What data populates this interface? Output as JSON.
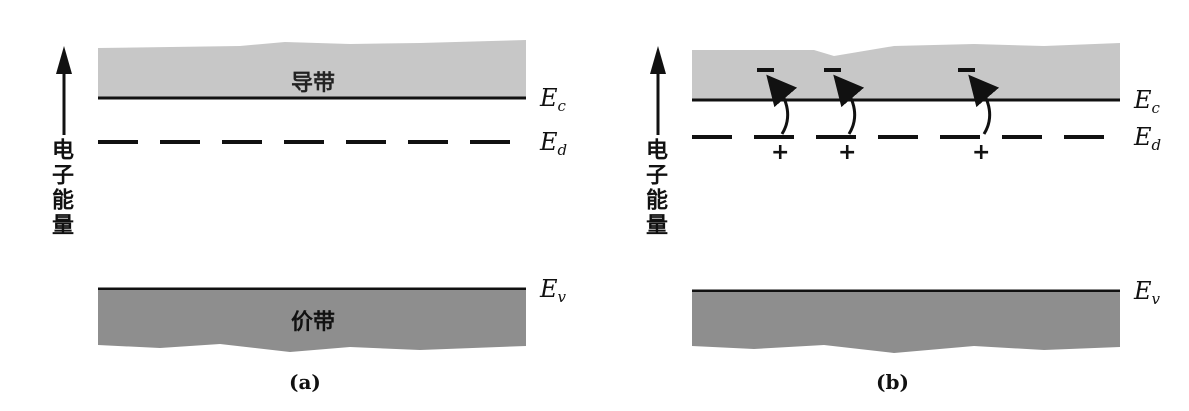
{
  "axis_label": "电子能量",
  "panels": [
    {
      "caption": "(a)",
      "conduction_band_label": "导带",
      "valence_band_label": "价带",
      "levels": {
        "ec": "E",
        "ec_sub": "c",
        "ed": "E",
        "ed_sub": "d",
        "ev": "E",
        "ev_sub": "v"
      }
    },
    {
      "caption": "(b)",
      "levels": {
        "ec": "E",
        "ec_sub": "c",
        "ed": "E",
        "ed_sub": "d",
        "ev": "E",
        "ev_sub": "v"
      },
      "electron_symbol": "−",
      "ion_symbol": "+",
      "ionized_donor_count": 3
    }
  ],
  "colors": {
    "conduction_band": "#c7c7c7",
    "valence_band": "#8e8e8e",
    "lines": "#111111"
  }
}
